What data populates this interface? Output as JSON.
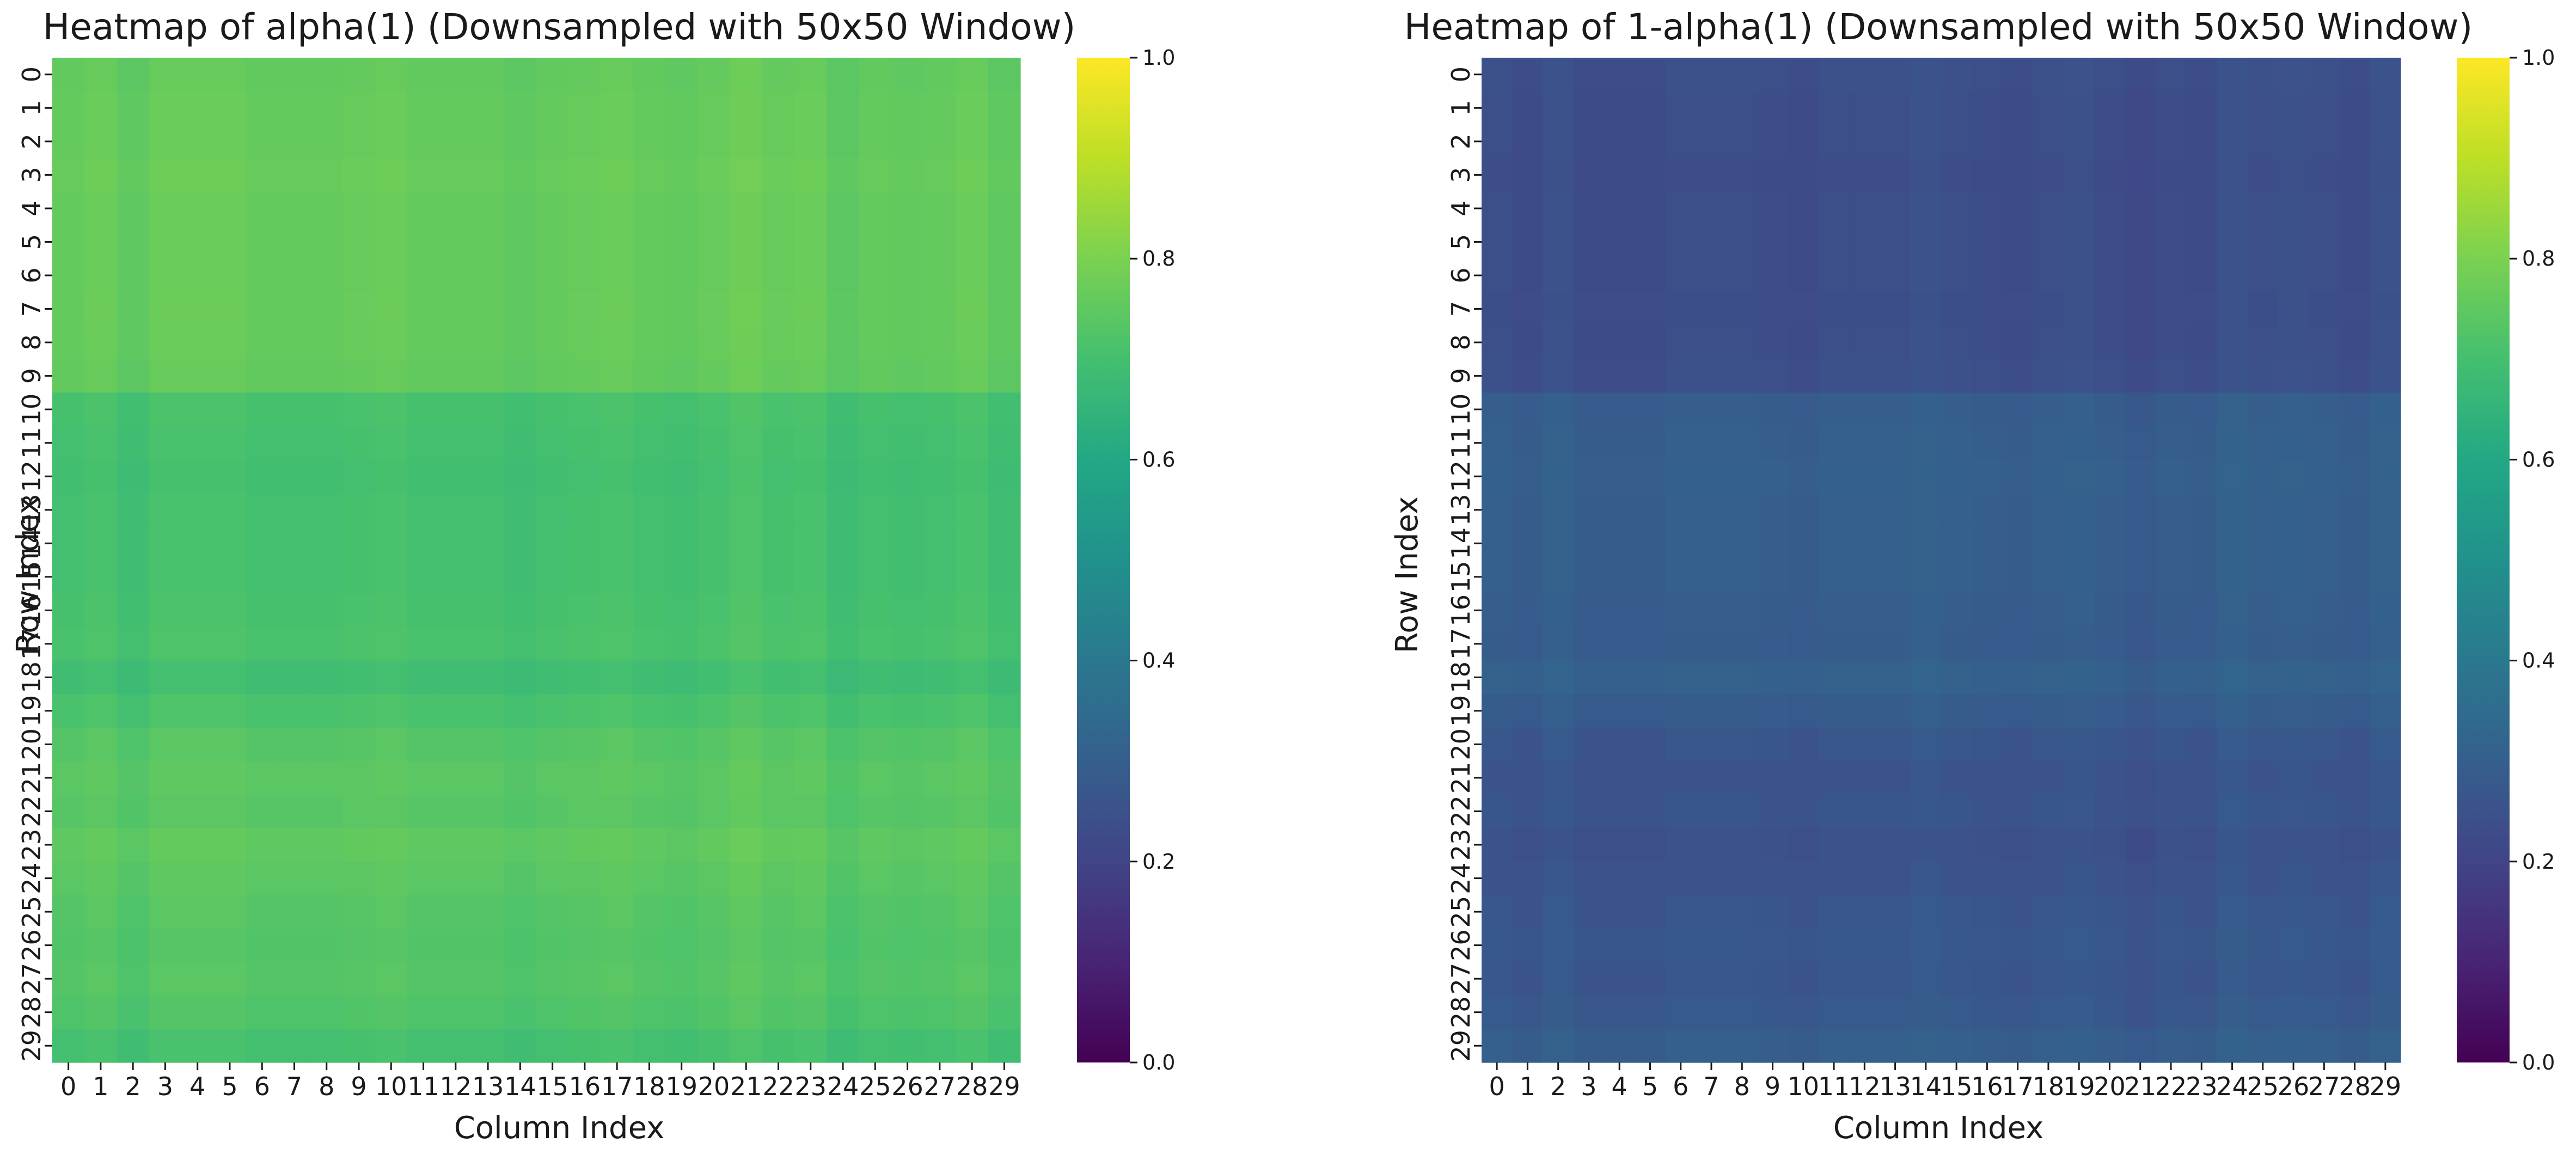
{
  "chart_data": [
    {
      "type": "heatmap",
      "title": "Heatmap of alpha(1) (Downsampled with 50x50 Window)",
      "xlabel": "Column Index",
      "ylabel": "Row Index",
      "rows": 30,
      "cols": 30,
      "x_ticks": [
        "0",
        "1",
        "2",
        "3",
        "4",
        "5",
        "6",
        "7",
        "8",
        "9",
        "10",
        "11",
        "12",
        "13",
        "14",
        "15",
        "16",
        "17",
        "18",
        "19",
        "20",
        "21",
        "22",
        "23",
        "24",
        "25",
        "26",
        "27",
        "28",
        "29"
      ],
      "y_ticks": [
        "0",
        "1",
        "2",
        "3",
        "4",
        "5",
        "6",
        "7",
        "8",
        "9",
        "10",
        "11",
        "12",
        "13",
        "14",
        "15",
        "16",
        "17",
        "18",
        "19",
        "20",
        "21",
        "22",
        "23",
        "24",
        "25",
        "26",
        "27",
        "28",
        "29"
      ],
      "colormap": "viridis",
      "vmin": 0.0,
      "vmax": 1.0,
      "colorbar_ticks": [
        "0.0",
        "0.2",
        "0.4",
        "0.6",
        "0.8",
        "1.0"
      ],
      "row_base": [
        0.755,
        0.76,
        0.76,
        0.765,
        0.76,
        0.76,
        0.76,
        0.762,
        0.76,
        0.755,
        0.705,
        0.7,
        0.695,
        0.7,
        0.7,
        0.7,
        0.705,
        0.71,
        0.69,
        0.71,
        0.73,
        0.74,
        0.735,
        0.75,
        0.74,
        0.73,
        0.725,
        0.73,
        0.72,
        0.7
      ],
      "col_offset": [
        0.0,
        0.01,
        -0.01,
        0.01,
        0.01,
        0.01,
        0.0,
        0.0,
        0.0,
        0.005,
        0.01,
        0.0,
        0.0,
        0.0,
        -0.01,
        0.0,
        0.005,
        0.01,
        0.0,
        -0.005,
        0.005,
        0.02,
        0.005,
        0.01,
        -0.015,
        0.0,
        -0.005,
        0.0,
        0.01,
        -0.01
      ]
    },
    {
      "type": "heatmap",
      "title": "Heatmap of 1-alpha(1) (Downsampled with 50x50 Window)",
      "xlabel": "Column Index",
      "ylabel": "Row Index",
      "rows": 30,
      "cols": 30,
      "x_ticks": [
        "0",
        "1",
        "2",
        "3",
        "4",
        "5",
        "6",
        "7",
        "8",
        "9",
        "10",
        "11",
        "12",
        "13",
        "14",
        "15",
        "16",
        "17",
        "18",
        "19",
        "20",
        "21",
        "22",
        "23",
        "24",
        "25",
        "26",
        "27",
        "28",
        "29"
      ],
      "y_ticks": [
        "0",
        "1",
        "2",
        "3",
        "4",
        "5",
        "6",
        "7",
        "8",
        "9",
        "10",
        "11",
        "12",
        "13",
        "14",
        "15",
        "16",
        "17",
        "18",
        "19",
        "20",
        "21",
        "22",
        "23",
        "24",
        "25",
        "26",
        "27",
        "28",
        "29"
      ],
      "colormap": "viridis",
      "vmin": 0.0,
      "vmax": 1.0,
      "colorbar_ticks": [
        "0.0",
        "0.2",
        "0.4",
        "0.6",
        "0.8",
        "1.0"
      ],
      "derived_as": "1 - alpha(1)"
    }
  ]
}
